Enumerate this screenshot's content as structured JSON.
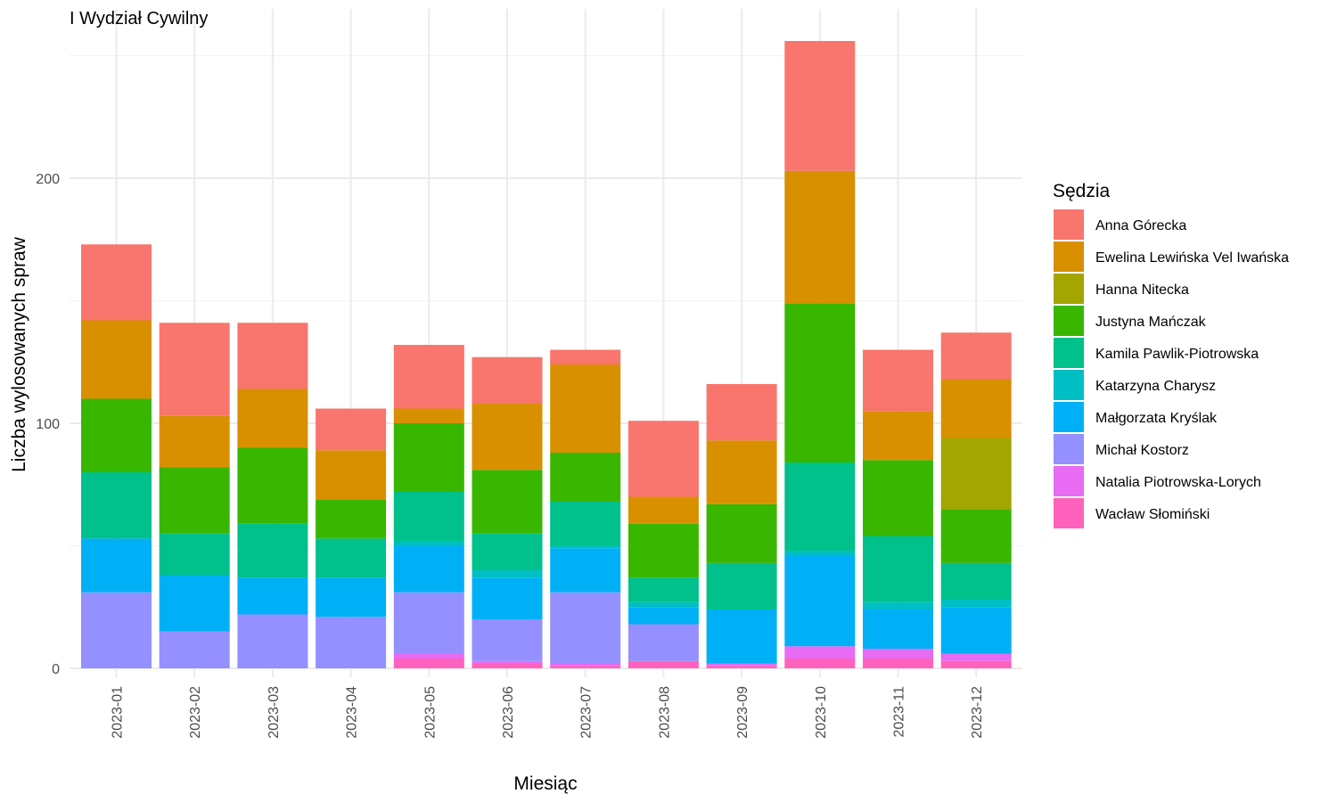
{
  "chart_data": {
    "type": "bar",
    "stacked": true,
    "title": "I Wydział Cywilny",
    "xlabel": "Miesiąc",
    "ylabel": "Liczba wylosowanych spraw",
    "ylim": [
      0,
      255
    ],
    "yticks": [
      0,
      100,
      200
    ],
    "grid": true,
    "legend_title": "Sędzia",
    "legend_position": "right",
    "categories": [
      "2023-01",
      "2023-02",
      "2023-03",
      "2023-04",
      "2023-05",
      "2023-06",
      "2023-07",
      "2023-08",
      "2023-09",
      "2023-10",
      "2023-11",
      "2023-12"
    ],
    "series": [
      {
        "name": "Wacław Słomiński",
        "color": "#FF62BC",
        "values": [
          0,
          0,
          0,
          0,
          4,
          2,
          1,
          3,
          1,
          4,
          4,
          3
        ]
      },
      {
        "name": "Natalia Piotrowska-Lorych",
        "color": "#E76BF3",
        "values": [
          0,
          0,
          0,
          0,
          2,
          1,
          1,
          0,
          1,
          5,
          4,
          3
        ]
      },
      {
        "name": "Michał Kostorz",
        "color": "#9590FF",
        "values": [
          31,
          15,
          22,
          21,
          25,
          17,
          29,
          15,
          0,
          0,
          0,
          0
        ]
      },
      {
        "name": "Małgorzata Kryślak",
        "color": "#00B0F6",
        "values": [
          22,
          23,
          15,
          16,
          19,
          17,
          18,
          7,
          22,
          37,
          16,
          19
        ]
      },
      {
        "name": "Katarzyna Charysz",
        "color": "#00BFC4",
        "values": [
          0,
          0,
          0,
          0,
          2,
          3,
          1,
          2,
          0,
          2,
          3,
          3
        ]
      },
      {
        "name": "Kamila Pawlik-Piotrowska",
        "color": "#00C08B",
        "values": [
          27,
          17,
          22,
          16,
          20,
          15,
          18,
          10,
          19,
          36,
          27,
          15
        ]
      },
      {
        "name": "Justyna Mańczak",
        "color": "#39B600",
        "values": [
          30,
          27,
          31,
          16,
          28,
          26,
          20,
          22,
          24,
          65,
          31,
          22
        ]
      },
      {
        "name": "Hanna Nitecka",
        "color": "#A3A500",
        "values": [
          0,
          0,
          0,
          0,
          0,
          0,
          0,
          0,
          0,
          0,
          0,
          29
        ]
      },
      {
        "name": "Ewelina Lewińska Vel Iwańska",
        "color": "#D89000",
        "values": [
          32,
          21,
          24,
          20,
          6,
          27,
          36,
          11,
          26,
          54,
          20,
          24
        ]
      },
      {
        "name": "Anna Górecka",
        "color": "#F8766D",
        "values": [
          31,
          38,
          27,
          17,
          26,
          19,
          6,
          31,
          23,
          53,
          25,
          19
        ]
      }
    ],
    "legend_order": [
      "Anna Górecka",
      "Ewelina Lewińska Vel Iwańska",
      "Hanna Nitecka",
      "Justyna Mańczak",
      "Kamila Pawlik-Piotrowska",
      "Katarzyna Charysz",
      "Małgorzata Kryślak",
      "Michał Kostorz",
      "Natalia Piotrowska-Lorych",
      "Wacław Słomiński"
    ]
  }
}
